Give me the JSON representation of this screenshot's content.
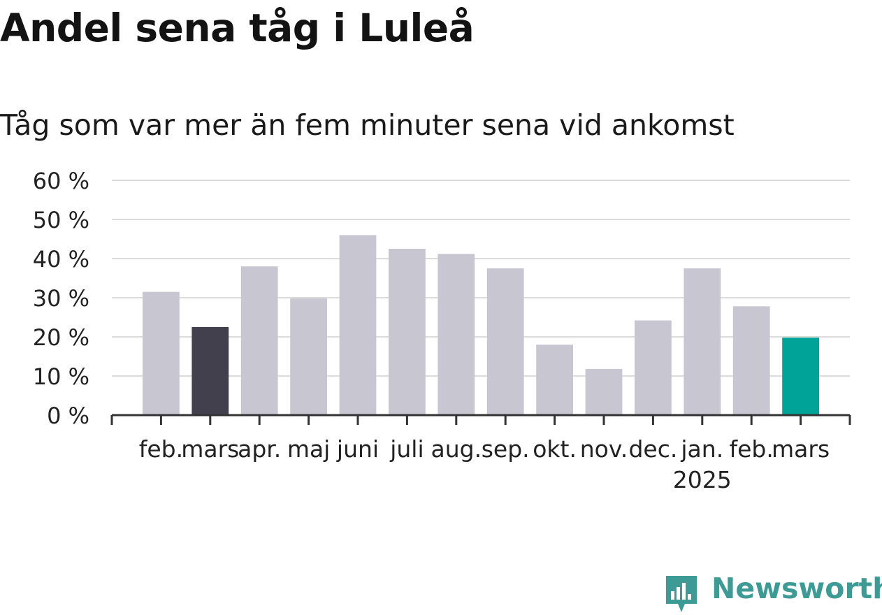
{
  "title": "Andel sena tåg i Luleå",
  "subtitle": "Tåg som var mer än fem minuter sena vid ankomst",
  "brand": {
    "name": "Newsworthy",
    "color": "#3e9a94",
    "icon": "newsworthy-logo-icon"
  },
  "colors": {
    "default": "#c8c6d1",
    "highlight_prev": "#43404d",
    "highlight_latest": "#00a398",
    "grid": "#dcdcdc",
    "axis": "#333333",
    "text": "#222222"
  },
  "chart_data": {
    "type": "bar",
    "categories": [
      "feb.",
      "mars",
      "apr.",
      "maj",
      "juni",
      "juli",
      "aug.",
      "sep.",
      "okt.",
      "nov.",
      "dec.",
      "jan.",
      "feb.",
      "mars"
    ],
    "category_sublabels": [
      "",
      "",
      "",
      "",
      "",
      "",
      "",
      "",
      "",
      "",
      "",
      "2025",
      "",
      ""
    ],
    "values": [
      31.5,
      22.5,
      38.0,
      29.8,
      46.0,
      42.5,
      41.2,
      37.5,
      18.0,
      11.8,
      24.2,
      37.5,
      27.8,
      19.8
    ],
    "highlight": [
      "",
      "previous",
      "",
      "",
      "",
      "",
      "",
      "",
      "",
      "",
      "",
      "",
      "",
      "latest"
    ],
    "y_ticks": [
      "0 %",
      "10 %",
      "20 %",
      "30 %",
      "40 %",
      "50 %",
      "60 %"
    ],
    "ylim": [
      0,
      60
    ],
    "grid": true,
    "xlabel": "",
    "ylabel": ""
  }
}
